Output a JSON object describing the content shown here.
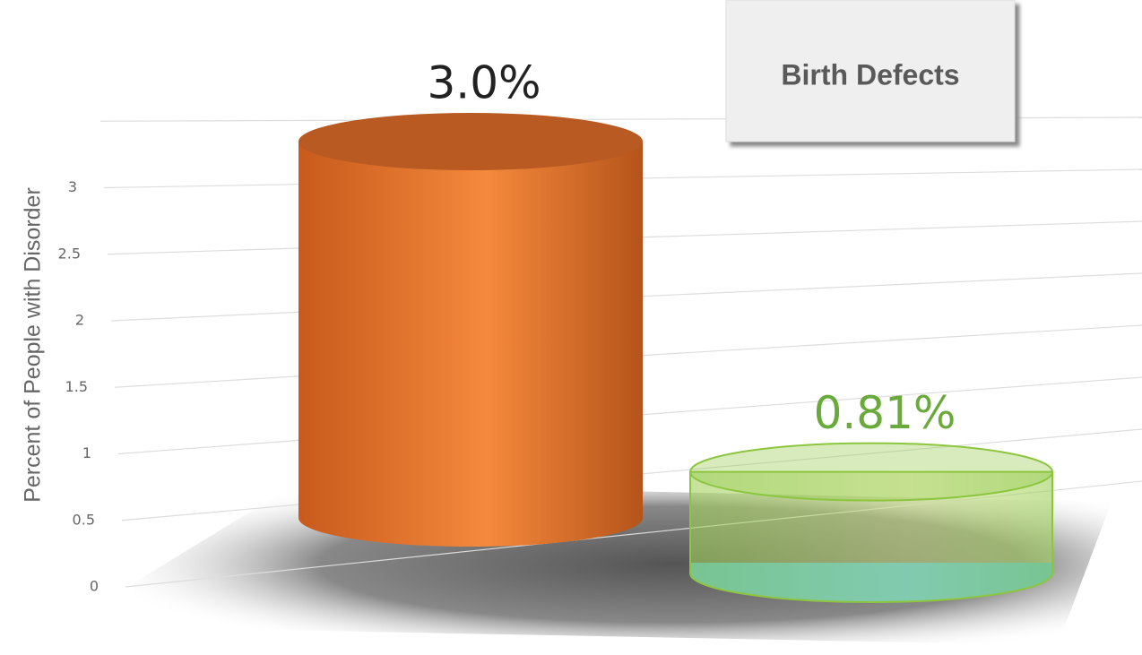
{
  "chart_data": {
    "type": "cylinder",
    "title": "Birth Defects",
    "y_label": "Percent of People with Disorder",
    "categories": [
      null,
      null
    ],
    "values": [
      3.0,
      0.81
    ],
    "value_labels": [
      "3.0%",
      "0.81%"
    ],
    "colors": [
      "#f07f2c",
      "#8cc63f"
    ],
    "label_colors": [
      "#222222",
      "#6aaa3a"
    ],
    "ylim": [
      0,
      3.5
    ],
    "yticks": [
      0,
      0.5,
      1,
      1.5,
      2,
      2.5,
      3
    ],
    "grid": true
  }
}
